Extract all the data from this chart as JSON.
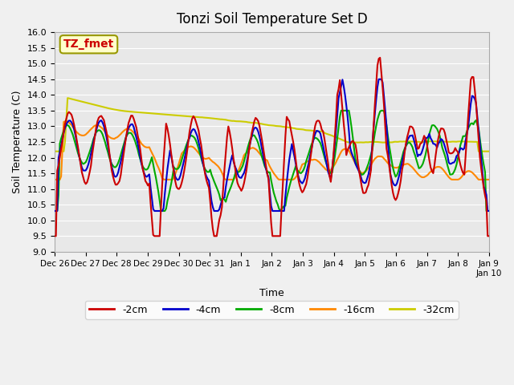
{
  "title": "Tonzi Soil Temperature Set D",
  "xlabel": "Time",
  "ylabel": "Soil Temperature (C)",
  "ylim": [
    9.0,
    16.0
  ],
  "yticks": [
    9.0,
    9.5,
    10.0,
    10.5,
    11.0,
    11.5,
    12.0,
    12.5,
    13.0,
    13.5,
    14.0,
    14.5,
    15.0,
    15.5,
    16.0
  ],
  "xtick_positions": [
    0,
    1,
    2,
    3,
    4,
    5,
    6,
    7,
    8,
    9,
    10,
    11,
    12,
    13,
    14
  ],
  "xtick_labels": [
    "Dec 26",
    "Dec 27",
    "Dec 28",
    "Dec 29",
    "Dec 30",
    "Dec 31",
    "Jan 1",
    "Jan 2",
    "Jan 3",
    "Jan 4",
    "Jan 5",
    "Jan 6",
    "Jan 7",
    "Jan 8",
    "Jan 9"
  ],
  "xlabel_extra": "Jan 10",
  "colors": {
    "2cm": "#cc0000",
    "4cm": "#0000cc",
    "8cm": "#00aa00",
    "16cm": "#ff8800",
    "32cm": "#cccc00"
  },
  "legend_labels": [
    "-2cm",
    "-4cm",
    "-8cm",
    "-16cm",
    "-32cm"
  ],
  "annotation_text": "TZ_fmet",
  "annotation_color": "#cc0000",
  "annotation_bg": "#ffffcc",
  "plot_bg": "#e8e8e8",
  "n_points": 336,
  "days": 14,
  "linewidth": 1.5
}
